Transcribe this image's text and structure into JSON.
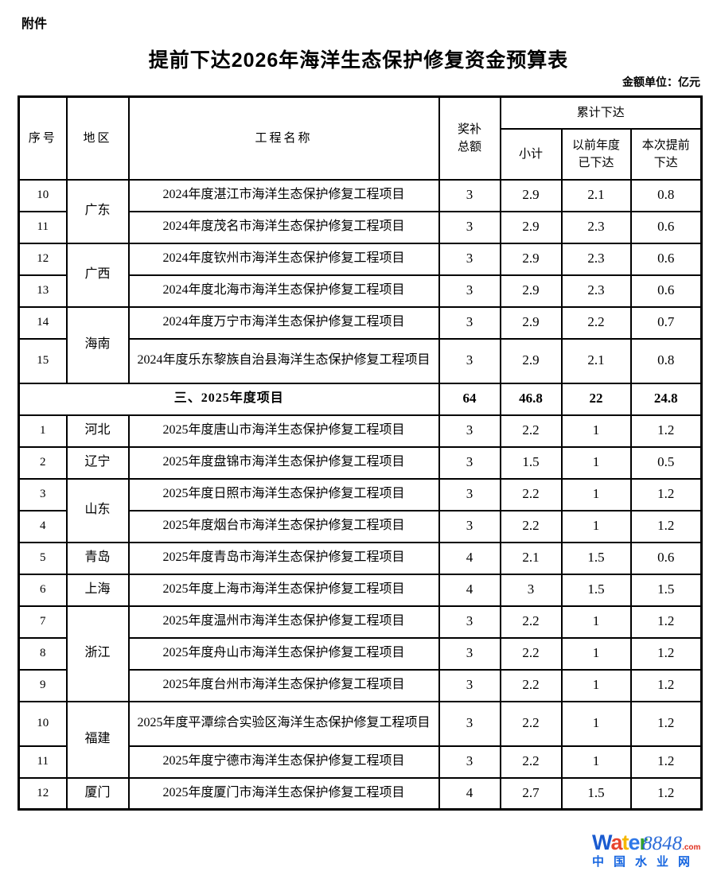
{
  "doc": {
    "attachment_label": "附件",
    "title": "提前下达2026年海洋生态保护修复资金预算表",
    "unit_note": "金额单位：亿元"
  },
  "table": {
    "headers": {
      "seq": "序号",
      "region": "地区",
      "project": "工程名称",
      "total": "奖补\n总额",
      "cumulative": "累计下达",
      "subtotal": "小计",
      "previous": "以前年度\n已下达",
      "current": "本次提前\n下达"
    },
    "rows_2024": [
      {
        "seq": "10",
        "region": "广东",
        "project": "2024年度湛江市海洋生态保护修复工程项目",
        "total": "3",
        "subtotal": "2.9",
        "previous": "2.1",
        "current": "0.8"
      },
      {
        "seq": "11",
        "project": "2024年度茂名市海洋生态保护修复工程项目",
        "total": "3",
        "subtotal": "2.9",
        "previous": "2.3",
        "current": "0.6"
      },
      {
        "seq": "12",
        "region": "广西",
        "project": "2024年度钦州市海洋生态保护修复工程项目",
        "total": "3",
        "subtotal": "2.9",
        "previous": "2.3",
        "current": "0.6"
      },
      {
        "seq": "13",
        "project": "2024年度北海市海洋生态保护修复工程项目",
        "total": "3",
        "subtotal": "2.9",
        "previous": "2.3",
        "current": "0.6"
      },
      {
        "seq": "14",
        "region": "海南",
        "project": "2024年度万宁市海洋生态保护修复工程项目",
        "total": "3",
        "subtotal": "2.9",
        "previous": "2.2",
        "current": "0.7"
      },
      {
        "seq": "15",
        "project": "2024年度乐东黎族自治县海洋生态保护修复工程项目",
        "total": "3",
        "subtotal": "2.9",
        "previous": "2.1",
        "current": "0.8"
      }
    ],
    "section_2025": {
      "label": "三、2025年度项目",
      "total": "64",
      "subtotal": "46.8",
      "previous": "22",
      "current": "24.8"
    },
    "rows_2025": [
      {
        "seq": "1",
        "region": "河北",
        "project": "2025年度唐山市海洋生态保护修复工程项目",
        "total": "3",
        "subtotal": "2.2",
        "previous": "1",
        "current": "1.2"
      },
      {
        "seq": "2",
        "region": "辽宁",
        "project": "2025年度盘锦市海洋生态保护修复工程项目",
        "total": "3",
        "subtotal": "1.5",
        "previous": "1",
        "current": "0.5"
      },
      {
        "seq": "3",
        "region": "山东",
        "project": "2025年度日照市海洋生态保护修复工程项目",
        "total": "3",
        "subtotal": "2.2",
        "previous": "1",
        "current": "1.2"
      },
      {
        "seq": "4",
        "project": "2025年度烟台市海洋生态保护修复工程项目",
        "total": "3",
        "subtotal": "2.2",
        "previous": "1",
        "current": "1.2"
      },
      {
        "seq": "5",
        "region": "青岛",
        "project": "2025年度青岛市海洋生态保护修复工程项目",
        "total": "4",
        "subtotal": "2.1",
        "previous": "1.5",
        "current": "0.6"
      },
      {
        "seq": "6",
        "region": "上海",
        "project": "2025年度上海市海洋生态保护修复工程项目",
        "total": "4",
        "subtotal": "3",
        "previous": "1.5",
        "current": "1.5"
      },
      {
        "seq": "7",
        "region": "浙江",
        "project": "2025年度温州市海洋生态保护修复工程项目",
        "total": "3",
        "subtotal": "2.2",
        "previous": "1",
        "current": "1.2"
      },
      {
        "seq": "8",
        "project": "2025年度舟山市海洋生态保护修复工程项目",
        "total": "3",
        "subtotal": "2.2",
        "previous": "1",
        "current": "1.2"
      },
      {
        "seq": "9",
        "project": "2025年度台州市海洋生态保护修复工程项目",
        "total": "3",
        "subtotal": "2.2",
        "previous": "1",
        "current": "1.2"
      },
      {
        "seq": "10",
        "region": "福建",
        "project": "2025年度平潭综合实验区海洋生态保护修复工程项目",
        "total": "3",
        "subtotal": "2.2",
        "previous": "1",
        "current": "1.2"
      },
      {
        "seq": "11",
        "project": "2025年度宁德市海洋生态保护修复工程项目",
        "total": "3",
        "subtotal": "2.2",
        "previous": "1",
        "current": "1.2"
      },
      {
        "seq": "12",
        "region": "厦门",
        "project": "2025年度厦门市海洋生态保护修复工程项目",
        "total": "4",
        "subtotal": "2.7",
        "previous": "1.5",
        "current": "1.2"
      }
    ]
  },
  "watermark": {
    "brand": {
      "l0": "W",
      "l1": "a",
      "l2": "t",
      "l3": "e",
      "l4": "r",
      "number": "8848",
      "tld": ".com"
    },
    "caption": "中国水业网",
    "colors": {
      "letter_blue": "#1a5bd0",
      "letter_red": "#e8442e",
      "letter_yellow": "#f6b700",
      "letter_green": "#33a12c",
      "number_blue": "#2b6bd8",
      "tld_red": "#e03020",
      "caption_blue": "#1766e0"
    }
  }
}
